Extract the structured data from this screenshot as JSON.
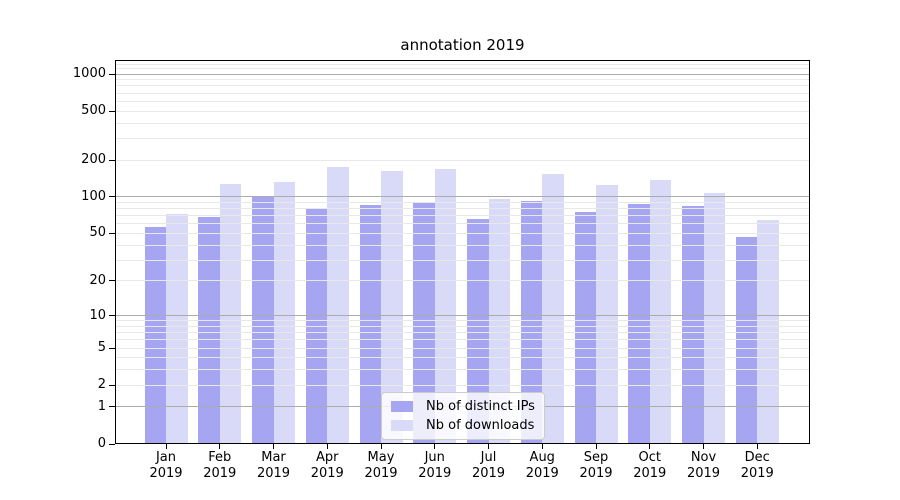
{
  "title": "annotation 2019",
  "chart_data": {
    "type": "bar",
    "title": "annotation 2019",
    "categories": [
      "Jan 2019",
      "Feb 2019",
      "Mar 2019",
      "Apr 2019",
      "May 2019",
      "Jun 2019",
      "Jul 2019",
      "Aug 2019",
      "Sep 2019",
      "Oct 2019",
      "Nov 2019",
      "Dec 2019"
    ],
    "series": [
      {
        "name": "Nb of distinct IPs",
        "color": "#a5a5f1",
        "values": [
          56,
          68,
          102,
          81,
          85,
          89,
          66,
          93,
          75,
          88,
          84,
          47
        ]
      },
      {
        "name": "Nb of downloads",
        "color": "#d9d9f8",
        "values": [
          73,
          127,
          133,
          175,
          164,
          170,
          96,
          155,
          126,
          138,
          107,
          64
        ]
      }
    ],
    "yscale": "log1p",
    "ylim": [
      0,
      1300
    ],
    "y_ticks": [
      0,
      1,
      2,
      5,
      10,
      20,
      50,
      100,
      200,
      500,
      1000
    ],
    "grid": true,
    "legend_position": "lower center"
  },
  "colors": {
    "major_grid": "#ababab",
    "minor_grid": "#e8e8e8",
    "spine": "#000000",
    "text": "#000000",
    "legend_border": "#cccccc"
  }
}
